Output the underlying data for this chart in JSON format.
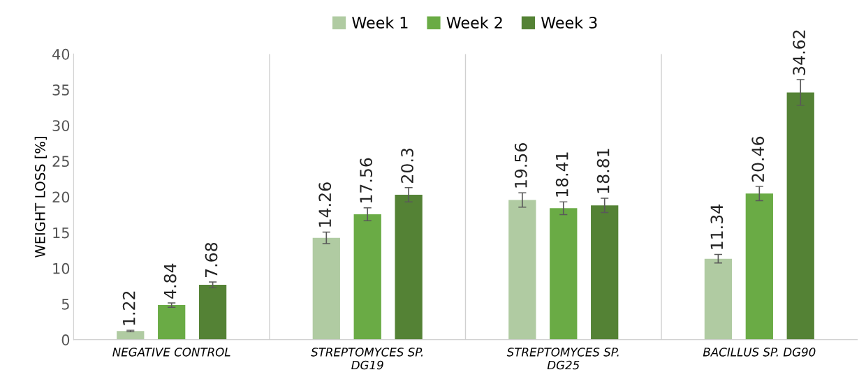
{
  "chart_data": {
    "type": "bar",
    "ylabel": "WEIGHT LOSS [%]",
    "categories": [
      "NEGATIVE CONTROL",
      "STREPTOMYCES SP. DG19",
      "STREPTOMYCES SP. DG25",
      "BACILLUS SP. DG90"
    ],
    "series": [
      {
        "name": "Week 1",
        "color": "#b0cba2",
        "values": [
          1.22,
          14.26,
          19.56,
          11.34
        ],
        "errors": [
          0.1,
          0.8,
          1.0,
          0.6
        ]
      },
      {
        "name": "Week 2",
        "color": "#6aab45",
        "values": [
          4.84,
          17.56,
          18.41,
          20.46
        ],
        "errors": [
          0.3,
          0.9,
          0.9,
          1.0
        ]
      },
      {
        "name": "Week 3",
        "color": "#548235",
        "values": [
          7.68,
          20.3,
          18.81,
          34.62
        ],
        "errors": [
          0.4,
          1.0,
          1.0,
          1.8
        ]
      }
    ],
    "ylim": [
      0,
      40
    ],
    "yticks": [
      0,
      5,
      10,
      15,
      20,
      25,
      30,
      35,
      40
    ],
    "grid": "x",
    "legend": "top",
    "data_labels": true
  }
}
